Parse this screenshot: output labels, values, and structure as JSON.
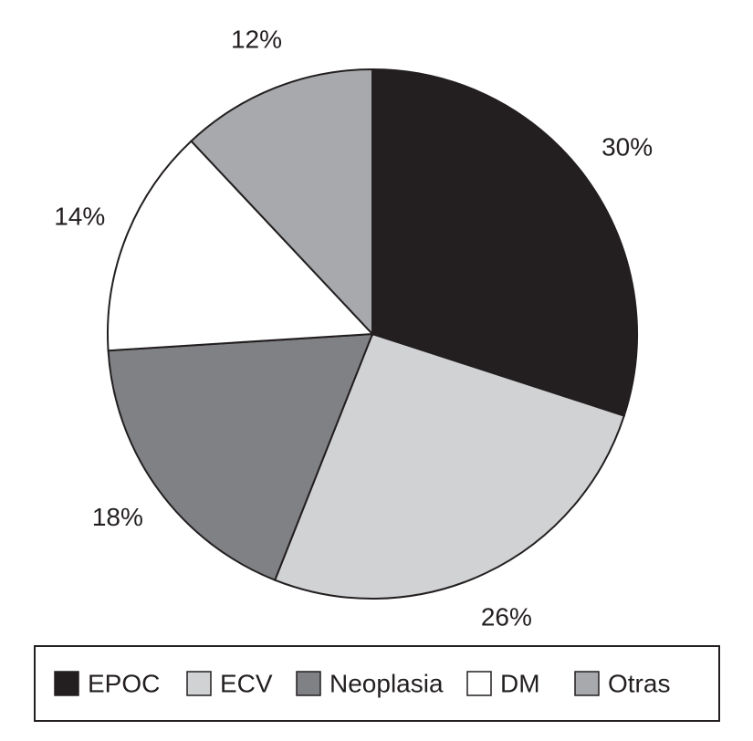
{
  "chart_data": {
    "type": "pie",
    "categories": [
      "EPOC",
      "ECV",
      "Neoplasia",
      "DM",
      "Otras"
    ],
    "values": [
      30,
      26,
      18,
      14,
      12
    ],
    "value_labels": [
      "30%",
      "26%",
      "18%",
      "14%",
      "12%"
    ],
    "colors": [
      "#231f20",
      "#d1d2d4",
      "#808184",
      "#ffffff",
      "#a7a9ac"
    ],
    "legend": "bottom"
  }
}
